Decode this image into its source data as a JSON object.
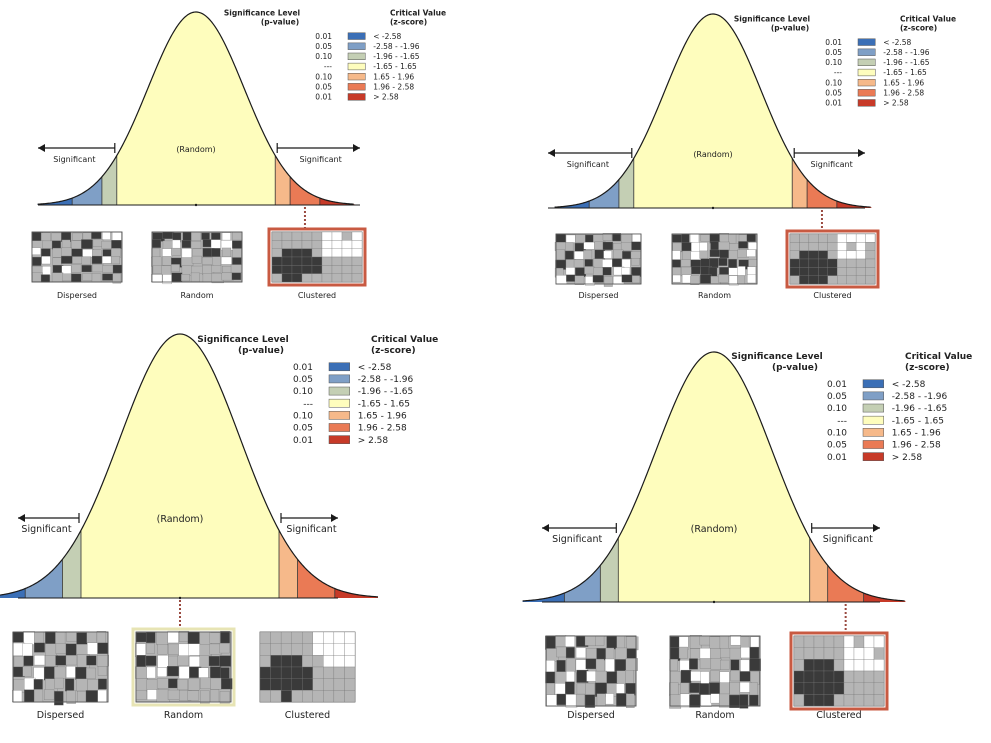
{
  "colors": {
    "bg": "#ffffff",
    "curve_fill": "#fefdbd",
    "curve_stroke": "#1a1a1a",
    "axis": "#1a1a1a",
    "bins": [
      "#3b6fb6",
      "#7f9fc6",
      "#c4cfb4",
      "#fefdbd",
      "#f6b98a",
      "#ea7a55",
      "#c73a28"
    ],
    "swatches": [
      "#3b6fb6",
      "#7f9fc6",
      "#c4cfb4",
      "#fefdbd",
      "#f6b98a",
      "#ea7a55",
      "#c73a28"
    ],
    "map_dark": "#3a3a3a",
    "map_mid": "#b5b5b5",
    "map_light": "#ffffff",
    "highlight_clustered": "#c85a42",
    "highlight_random": "#e7e4b4",
    "dotted": "#9a4a40"
  },
  "legend": {
    "sig_title_line1": "Significance Level",
    "sig_title_line2": "(p-value)",
    "crit_title_line1": "Critical Value",
    "crit_title_line2": "(z-score)",
    "rows": [
      {
        "p": "0.01",
        "z": "< -2.58"
      },
      {
        "p": "0.05",
        "z": "-2.58 - -1.96"
      },
      {
        "p": "0.10",
        "z": "-1.96 - -1.65"
      },
      {
        "p": "---",
        "z": "-1.65 - 1.65"
      },
      {
        "p": "0.10",
        "z": "1.65 - 1.96"
      },
      {
        "p": "0.05",
        "z": "1.96 - 2.58"
      },
      {
        "p": "0.01",
        "z": "> 2.58"
      }
    ]
  },
  "labels": {
    "significant": "Significant",
    "random_center": "(Random)",
    "map_dispersed": "Dispersed",
    "map_random": "Random",
    "map_clustered": "Clustered"
  },
  "panels": [
    {
      "id": "top-left",
      "highlight": "Clustered"
    },
    {
      "id": "top-right",
      "highlight": "Clustered"
    },
    {
      "id": "bottom-left",
      "highlight": "Random"
    },
    {
      "id": "bottom-right",
      "highlight": "Clustered"
    }
  ]
}
